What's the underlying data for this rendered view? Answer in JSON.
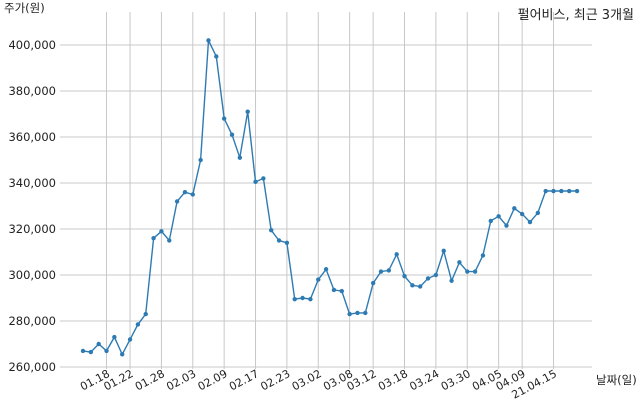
{
  "chart_data": {
    "type": "line",
    "title": "펄어비스, 최근 3개월",
    "ylabel": "주가(원)",
    "xlabel": "날짜(일)",
    "ylim": [
      260000,
      410000
    ],
    "y_ticks": [
      260000,
      280000,
      300000,
      320000,
      340000,
      360000,
      380000,
      400000
    ],
    "y_tick_labels": [
      "260,000",
      "280,000",
      "300,000",
      "320,000",
      "340,000",
      "360,000",
      "380,000",
      "400,000"
    ],
    "x_tick_labels": [
      "01.18",
      "01.22",
      "01.28",
      "02.03",
      "02.09",
      "02.17",
      "02.23",
      "03.02",
      "03.08",
      "03.12",
      "03.18",
      "03.24",
      "03.30",
      "04.05",
      "04.09",
      "21.04.15"
    ],
    "x_tick_index": [
      3,
      6,
      10,
      14,
      18,
      22,
      26,
      30,
      34,
      37,
      41,
      45,
      49,
      53,
      56,
      60
    ],
    "grid": true,
    "line_color": "#2e7bb3",
    "values": [
      267000,
      266500,
      270000,
      267000,
      273000,
      265500,
      272000,
      278500,
      283000,
      316000,
      319000,
      315000,
      332000,
      336000,
      335000,
      350000,
      402000,
      395000,
      368000,
      361000,
      351000,
      371000,
      340500,
      342000,
      319500,
      315000,
      314000,
      289500,
      290000,
      289500,
      298000,
      302500,
      293500,
      293000,
      283000,
      283500,
      283500,
      296500,
      301500,
      302000,
      309000,
      299500,
      295500,
      295000,
      298500,
      300000,
      310500,
      297500,
      305500,
      301500,
      301500,
      308500,
      323500,
      325500,
      321500,
      329000,
      326500,
      323000,
      327000,
      336500,
      336500,
      336500,
      336500,
      336500
    ]
  }
}
